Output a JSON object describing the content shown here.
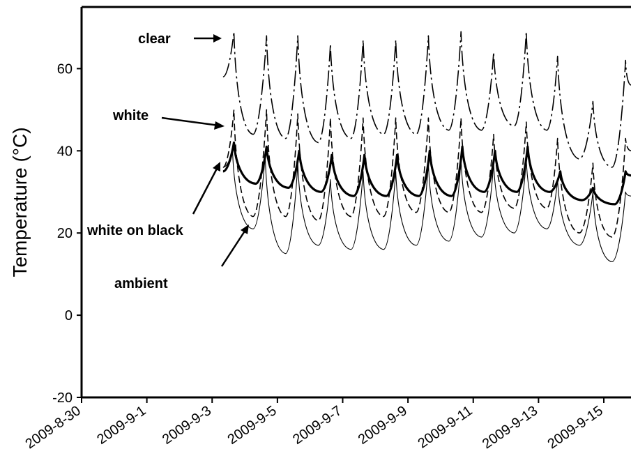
{
  "chart_data": {
    "type": "line",
    "title": "",
    "xlabel": "",
    "ylabel": "Temperature (°C)",
    "ylim": [
      -20,
      75
    ],
    "xlim": [
      "2009-8-30",
      "2009-9-15T20:00"
    ],
    "grid": false,
    "legend": "none",
    "x_tick_labels": [
      "2009-8-30",
      "2009-9-1",
      "2009-9-3",
      "2009-9-5",
      "2009-9-7",
      "2009-9-9",
      "2009-9-11",
      "2009-9-13",
      "2009-9-15"
    ],
    "y_tick_labels": [
      "-20",
      "0",
      "20",
      "40",
      "60"
    ],
    "annotations": [
      {
        "text": "clear"
      },
      {
        "text": "white"
      },
      {
        "text": "white on black"
      },
      {
        "text": "ambient"
      }
    ],
    "series": [
      {
        "name": "clear",
        "style": "long-dash-dot",
        "x": [
          "2009-9-3 08:00",
          "2009-9-3 16:00",
          "2009-9-4 06:00",
          "2009-9-4 16:00",
          "2009-9-5 06:00",
          "2009-9-5 15:00",
          "2009-9-6 06:00",
          "2009-9-6 15:00",
          "2009-9-7 06:00",
          "2009-9-7 15:00",
          "2009-9-8 06:00",
          "2009-9-8 15:00",
          "2009-9-9 06:00",
          "2009-9-9 15:00",
          "2009-9-10 06:00",
          "2009-9-10 15:00",
          "2009-9-11 06:00",
          "2009-9-11 15:00",
          "2009-9-12 06:00",
          "2009-9-12 15:00",
          "2009-9-13 06:00",
          "2009-9-13 14:00",
          "2009-9-14 06:00",
          "2009-9-14 16:00",
          "2009-9-15 06:00",
          "2009-9-15 16:00",
          "2009-9-15 20:00"
        ],
        "values": [
          58,
          69,
          44,
          68,
          43,
          68,
          42,
          66,
          43,
          67,
          44,
          67,
          44,
          68,
          45,
          69,
          45,
          64,
          46,
          69,
          45,
          63,
          38,
          52,
          36,
          62,
          56
        ]
      },
      {
        "name": "white",
        "style": "dashed",
        "x": [
          "2009-9-3 08:00",
          "2009-9-3 16:00",
          "2009-9-4 06:00",
          "2009-9-4 16:00",
          "2009-9-5 06:00",
          "2009-9-5 15:00",
          "2009-9-6 06:00",
          "2009-9-6 15:00",
          "2009-9-7 06:00",
          "2009-9-7 15:00",
          "2009-9-8 06:00",
          "2009-9-8 15:00",
          "2009-9-9 06:00",
          "2009-9-9 15:00",
          "2009-9-10 06:00",
          "2009-9-10 15:00",
          "2009-9-11 06:00",
          "2009-9-11 15:00",
          "2009-9-12 06:00",
          "2009-9-12 15:00",
          "2009-9-13 06:00",
          "2009-9-13 14:00",
          "2009-9-14 06:00",
          "2009-9-14 16:00",
          "2009-9-15 06:00",
          "2009-9-15 16:00",
          "2009-9-15 20:00"
        ],
        "values": [
          36,
          50,
          24,
          50,
          24,
          49,
          23,
          48,
          24,
          48,
          24,
          48,
          25,
          48,
          25,
          48,
          25,
          44,
          26,
          47,
          26,
          43,
          20,
          37,
          19,
          43,
          40
        ]
      },
      {
        "name": "white on black",
        "style": "bold-solid",
        "x": [
          "2009-9-3 08:00",
          "2009-9-3 16:00",
          "2009-9-4 08:00",
          "2009-9-4 16:00",
          "2009-9-5 08:00",
          "2009-9-5 16:00",
          "2009-9-6 08:00",
          "2009-9-6 16:00",
          "2009-9-7 08:00",
          "2009-9-7 16:00",
          "2009-9-8 08:00",
          "2009-9-8 16:00",
          "2009-9-9 08:00",
          "2009-9-9 16:00",
          "2009-9-10 08:00",
          "2009-9-10 16:00",
          "2009-9-11 08:00",
          "2009-9-11 16:00",
          "2009-9-12 08:00",
          "2009-9-12 16:00",
          "2009-9-13 08:00",
          "2009-9-13 16:00",
          "2009-9-14 08:00",
          "2009-9-14 16:00",
          "2009-9-15 08:00",
          "2009-9-15 16:00",
          "2009-9-15 20:00"
        ],
        "values": [
          35,
          42,
          32,
          41,
          31,
          40,
          30,
          39,
          29,
          39,
          29,
          39,
          29,
          40,
          29,
          41,
          30,
          40,
          30,
          41,
          30,
          35,
          28,
          31,
          27,
          35,
          34
        ]
      },
      {
        "name": "ambient",
        "style": "thin-solid",
        "x": [
          "2009-9-3 08:00",
          "2009-9-3 15:00",
          "2009-9-4 06:00",
          "2009-9-4 15:00",
          "2009-9-5 06:00",
          "2009-9-5 15:00",
          "2009-9-6 06:00",
          "2009-9-6 15:00",
          "2009-9-7 06:00",
          "2009-9-7 15:00",
          "2009-9-8 06:00",
          "2009-9-8 15:00",
          "2009-9-9 06:00",
          "2009-9-9 15:00",
          "2009-9-10 06:00",
          "2009-9-10 15:00",
          "2009-9-11 06:00",
          "2009-9-11 15:00",
          "2009-9-12 06:00",
          "2009-9-12 15:00",
          "2009-9-13 06:00",
          "2009-9-13 14:00",
          "2009-9-14 06:00",
          "2009-9-14 16:00",
          "2009-9-15 06:00",
          "2009-9-15 16:00",
          "2009-9-15 20:00"
        ],
        "values": [
          36,
          40,
          21,
          39,
          15,
          37,
          17,
          33,
          16,
          35,
          16,
          35,
          17,
          37,
          18,
          38,
          19,
          37,
          20,
          38,
          21,
          33,
          17,
          30,
          13,
          30,
          29
        ]
      }
    ]
  }
}
